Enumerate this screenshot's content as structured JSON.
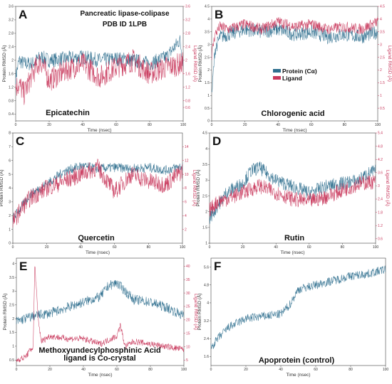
{
  "header": {
    "line1": "Pancreatic lipase-colipase",
    "line2": "PDB ID  1LPB"
  },
  "legend": {
    "protein": "Protein (Cα)",
    "ligand": "Ligand",
    "protein_color": "#2e6f8e",
    "ligand_color": "#c8385c"
  },
  "chart_data": [
    {
      "panel": "A",
      "type": "line",
      "name": "Epicatechin",
      "xlabel": "Time (nsec)",
      "ylabel": "Protein RMSD (Å)",
      "ylabel_right": "Ligand RMSD (Å)",
      "xlim": [
        0,
        100
      ],
      "xticks": [
        0,
        20,
        40,
        60,
        80,
        100
      ],
      "ylim": [
        0.2,
        3.6
      ],
      "yticks": [
        0.4,
        0.8,
        1.2,
        1.6,
        2.0,
        2.4,
        2.8,
        3.2,
        3.6
      ],
      "ylim_right": [
        0.2,
        3.6
      ],
      "yticks_right": [
        0.6,
        0.8,
        1.2,
        1.6,
        2.0,
        2.4,
        2.8,
        3.2,
        3.6
      ],
      "series": [
        {
          "name": "Protein (Cα)",
          "color": "#2e6f8e",
          "x": [
            0,
            2,
            5,
            10,
            15,
            20,
            30,
            40,
            50,
            60,
            70,
            80,
            90,
            95,
            98,
            100
          ],
          "y": [
            1.5,
            2.0,
            1.9,
            1.9,
            2.1,
            2.0,
            2.05,
            2.1,
            2.0,
            2.05,
            2.0,
            1.9,
            2.1,
            2.4,
            2.6,
            2.0
          ]
        },
        {
          "name": "Ligand",
          "color": "#c8385c",
          "x": [
            0,
            2,
            5,
            10,
            15,
            20,
            30,
            40,
            50,
            60,
            70,
            80,
            90,
            100
          ],
          "y": [
            1.2,
            1.3,
            1.0,
            1.6,
            2.0,
            1.4,
            1.7,
            1.9,
            1.5,
            1.8,
            2.0,
            1.6,
            1.8,
            1.9
          ]
        }
      ]
    },
    {
      "panel": "B",
      "type": "line",
      "name": "Chlorogenic acid",
      "xlabel": "Time (nsec)",
      "ylabel": "Protein RMSD (Å)",
      "ylabel_right": "Ligand RMSD (Å)",
      "xlim": [
        0,
        100
      ],
      "xticks": [
        0,
        20,
        40,
        60,
        80,
        100
      ],
      "ylim": [
        0.0,
        4.5
      ],
      "yticks": [
        0.0,
        0.5,
        1.0,
        1.5,
        2.0,
        2.5,
        3.0,
        3.5,
        4.0,
        4.5
      ],
      "ylim_right": [
        0.0,
        4.5
      ],
      "yticks_right": [
        0.5,
        1.0,
        1.5,
        2.0,
        2.5,
        3.0,
        3.5,
        4.0,
        4.5
      ],
      "series": [
        {
          "name": "Protein (Cα)",
          "color": "#2e6f8e",
          "x": [
            0,
            2,
            5,
            10,
            20,
            30,
            40,
            50,
            60,
            70,
            80,
            90,
            100
          ],
          "y": [
            1.0,
            2.8,
            3.3,
            3.4,
            3.6,
            3.5,
            3.6,
            3.4,
            3.5,
            3.3,
            3.4,
            3.3,
            3.5
          ]
        },
        {
          "name": "Ligand",
          "color": "#c8385c",
          "x": [
            0,
            2,
            5,
            10,
            20,
            30,
            40,
            50,
            60,
            70,
            80,
            90,
            100
          ],
          "y": [
            2.6,
            3.4,
            3.7,
            3.6,
            3.8,
            3.6,
            3.9,
            3.7,
            3.8,
            3.6,
            3.7,
            3.6,
            3.9
          ]
        }
      ]
    },
    {
      "panel": "C",
      "type": "line",
      "name": "Quercetin",
      "xlabel": "Time (nsec)",
      "ylabel": "Protein RMSD (Å)",
      "ylabel_right": "Ligand RMSD (Å)",
      "xlim": [
        0,
        100
      ],
      "xticks": [
        0,
        20,
        40,
        60,
        80,
        100
      ],
      "ylim": [
        0,
        8
      ],
      "yticks": [
        0,
        1,
        2,
        3,
        4,
        5,
        6,
        7,
        8
      ],
      "ylim_right": [
        0,
        16
      ],
      "yticks_right": [
        2,
        4,
        6,
        8,
        10,
        12,
        14
      ],
      "series": [
        {
          "name": "Protein (Cα)",
          "color": "#2e6f8e",
          "x": [
            0,
            5,
            10,
            20,
            30,
            40,
            50,
            60,
            70,
            80,
            90,
            100
          ],
          "y": [
            1.8,
            2.6,
            3.5,
            4.3,
            5.2,
            5.6,
            5.4,
            5.5,
            5.4,
            5.5,
            5.3,
            5.6
          ]
        },
        {
          "name": "Ligand",
          "color": "#c8385c",
          "x": [
            0,
            5,
            10,
            20,
            30,
            40,
            50,
            60,
            70,
            80,
            90,
            100
          ],
          "y": [
            3.0,
            5.0,
            6.5,
            8.0,
            9.0,
            10.0,
            11.0,
            7.5,
            10.0,
            9.0,
            8.5,
            10.5
          ]
        }
      ]
    },
    {
      "panel": "D",
      "type": "line",
      "name": "Rutin",
      "xlabel": "Time (nsec)",
      "ylabel": "Protein RMSD (Å)",
      "ylabel_right": "Ligand RMSD (Å)",
      "xlim": [
        0,
        100
      ],
      "xticks": [
        0,
        20,
        40,
        60,
        80,
        100
      ],
      "ylim": [
        1.0,
        4.5
      ],
      "yticks": [
        1.0,
        1.5,
        2.0,
        2.5,
        3.0,
        3.5,
        4.0,
        4.5
      ],
      "ylim_right": [
        0.4,
        5.4
      ],
      "yticks_right": [
        0.6,
        1.2,
        1.8,
        2.4,
        3.0,
        3.6,
        4.2,
        4.8,
        5.4
      ],
      "series": [
        {
          "name": "Protein (Cα)",
          "color": "#2e6f8e",
          "x": [
            0,
            5,
            10,
            20,
            25,
            30,
            40,
            50,
            60,
            70,
            80,
            90,
            95,
            100
          ],
          "y": [
            1.8,
            2.2,
            2.6,
            2.9,
            3.3,
            3.4,
            3.0,
            2.8,
            2.6,
            2.8,
            2.9,
            3.0,
            3.2,
            3.3
          ]
        },
        {
          "name": "Ligand",
          "color": "#c8385c",
          "x": [
            0,
            5,
            10,
            20,
            30,
            40,
            50,
            60,
            70,
            80,
            90,
            100
          ],
          "y": [
            1.9,
            2.3,
            2.4,
            2.7,
            3.0,
            2.7,
            2.4,
            2.3,
            2.5,
            2.8,
            3.1,
            3.2
          ]
        }
      ]
    },
    {
      "panel": "E",
      "type": "line",
      "name": "Methoxyundecylphosphinic Acid ligand is Co-crystal",
      "xlabel": "Time (nsec)",
      "ylabel": "Protein RMSD (Å)",
      "ylabel_right": "Ligand RMSD (Å)",
      "xlim": [
        0,
        100
      ],
      "xticks": [
        0,
        20,
        40,
        60,
        80,
        100
      ],
      "ylim": [
        0.3,
        4.2
      ],
      "yticks": [
        0.5,
        1.0,
        1.5,
        2.0,
        2.5,
        3.0,
        3.5,
        4.0
      ],
      "ylim_right": [
        3,
        43
      ],
      "yticks_right": [
        5,
        10,
        15,
        20,
        25,
        30,
        35,
        40
      ],
      "series": [
        {
          "name": "Protein (Cα)",
          "color": "#2e6f8e",
          "x": [
            0,
            5,
            10,
            20,
            30,
            40,
            50,
            55,
            60,
            65,
            70,
            80,
            90,
            100
          ],
          "y": [
            1.9,
            2.0,
            2.1,
            2.2,
            2.4,
            2.6,
            2.8,
            3.2,
            3.3,
            3.0,
            2.7,
            2.6,
            2.4,
            2.1
          ]
        },
        {
          "name": "Ligand",
          "color": "#c8385c",
          "x": [
            0,
            5,
            10,
            11,
            13,
            15,
            20,
            30,
            40,
            50,
            60,
            62,
            65,
            70,
            80,
            90,
            100
          ],
          "y": [
            5,
            6,
            10,
            41,
            20,
            12,
            14,
            13,
            13,
            11,
            14,
            18,
            10,
            12,
            11,
            10,
            9
          ]
        }
      ]
    },
    {
      "panel": "F",
      "type": "line",
      "name": "Apoprotein (control)",
      "xlabel": "Time (nsec)",
      "ylabel": "Protein RMSD (Å)",
      "ylabel_right": "",
      "xlim": [
        0,
        100
      ],
      "xticks": [
        0,
        20,
        40,
        60,
        80,
        100
      ],
      "ylim": [
        1.2,
        6.0
      ],
      "yticks": [
        1.6,
        2.4,
        3.2,
        4.0,
        4.8,
        5.6
      ],
      "ylim_right": null,
      "yticks_right": [],
      "series": [
        {
          "name": "Protein (Cα)",
          "color": "#2e6f8e",
          "x": [
            0,
            5,
            10,
            15,
            20,
            30,
            40,
            45,
            50,
            60,
            70,
            80,
            90,
            100
          ],
          "y": [
            2.0,
            2.5,
            2.9,
            3.1,
            3.3,
            3.4,
            3.5,
            3.9,
            4.6,
            4.8,
            5.0,
            5.2,
            5.3,
            5.5
          ]
        }
      ]
    }
  ]
}
